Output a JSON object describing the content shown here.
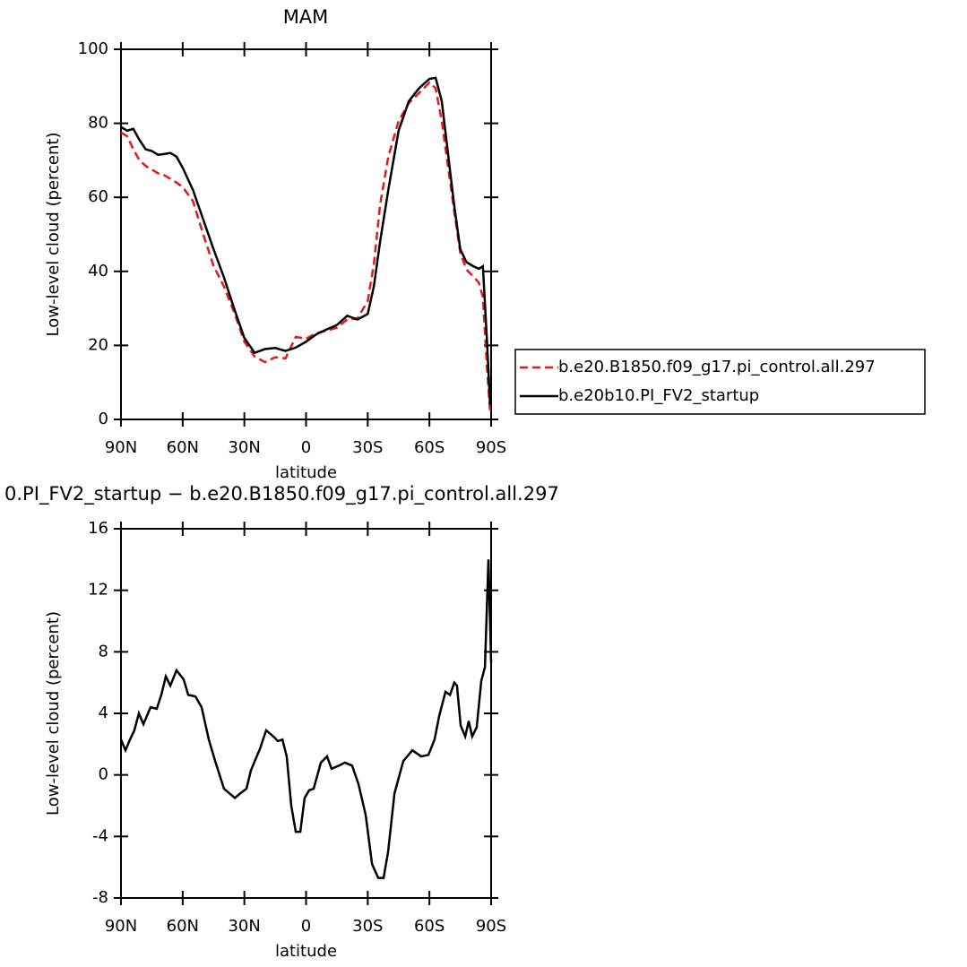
{
  "chart_data": [
    {
      "type": "line",
      "title": "MAM",
      "xlabel": "latitude",
      "ylabel": "Low-level cloud (percent)",
      "x": [
        90,
        87,
        84,
        81,
        78,
        75,
        72,
        69,
        66,
        63,
        60,
        55,
        50,
        45,
        40,
        35,
        30,
        25,
        20,
        15,
        10,
        5,
        0,
        -5,
        -10,
        -15,
        -20,
        -25,
        -30,
        -33,
        -36,
        -40,
        -45,
        -50,
        -55,
        -60,
        -63,
        -66,
        -69,
        -72,
        -75,
        -78,
        -81,
        -84,
        -86,
        -88,
        -89.5
      ],
      "series": [
        {
          "name": "b.e20.B1850.f09_g17.pi_control.all.297",
          "color": "#e31a1c",
          "dash": true,
          "values": [
            77.5,
            76.5,
            73,
            70,
            68.5,
            67.5,
            66.5,
            66,
            65,
            64,
            62.8,
            59,
            50,
            41.5,
            36,
            29,
            21,
            17,
            15.5,
            16.8,
            16.5,
            22.3,
            21.8,
            23.3,
            24,
            24.8,
            27,
            27.3,
            32,
            42,
            58,
            71,
            80.6,
            85.5,
            88.2,
            91,
            89.5,
            80.6,
            68.5,
            56.5,
            45,
            40.5,
            38.8,
            37,
            33,
            14,
            2
          ]
        },
        {
          "name": "b.e20b10.PI_FV2_startup",
          "color": "#000000",
          "dash": false,
          "values": [
            79,
            78,
            78.5,
            75.5,
            73,
            72.5,
            71.5,
            71.7,
            72,
            71,
            68,
            62,
            54,
            46,
            38.5,
            30,
            22,
            18,
            19,
            19.3,
            18.5,
            19.4,
            21,
            23,
            24.3,
            25.5,
            28,
            27,
            28.5,
            36,
            48,
            62,
            78,
            86,
            89.5,
            92,
            92.3,
            86,
            72,
            58,
            46,
            42.5,
            41.5,
            40.7,
            41.4,
            21,
            4
          ]
        }
      ],
      "xlim": [
        90,
        -90
      ],
      "xticks": [
        {
          "value": 90,
          "label": "90N"
        },
        {
          "value": 60,
          "label": "60N"
        },
        {
          "value": 30,
          "label": "30N"
        },
        0,
        {
          "value": -30,
          "label": "30S"
        },
        {
          "value": -60,
          "label": "60S"
        },
        {
          "value": -90,
          "label": "90S"
        }
      ],
      "ylim": [
        0,
        100
      ],
      "yticks": [
        0,
        20,
        40,
        60,
        80,
        100
      ],
      "legend": "outside-right"
    },
    {
      "type": "line",
      "title": "0.PI_FV2_startup − b.e20.B1850.f09_g17.pi_control.all.297",
      "xlabel": "latitude",
      "ylabel": "Low-level cloud (percent)",
      "x": [
        90,
        87.8,
        85.6,
        83.5,
        81.3,
        79.1,
        75.6,
        72.6,
        70.4,
        68.2,
        66,
        63,
        59.5,
        57.3,
        53.8,
        50.8,
        47.3,
        44.2,
        39.9,
        34.6,
        32,
        29,
        26.8,
        22.4,
        19.4,
        15.9,
        13.7,
        11.5,
        9.4,
        7.2,
        5,
        2.8,
        0.7,
        -1.5,
        -3.7,
        -7.2,
        -10.2,
        -12.4,
        -15.9,
        -18.9,
        -22.4,
        -25.5,
        -29,
        -32.1,
        -35.1,
        -37.7,
        -39.9,
        -43,
        -47.3,
        -51.7,
        -56,
        -59.5,
        -62.5,
        -64.7,
        -67.8,
        -70,
        -72.1,
        -73.4,
        -75.2,
        -77.4,
        -79.1,
        -80.8,
        -83,
        -85.2,
        -87,
        -88.7,
        -90
      ],
      "values": [
        2.3,
        1.6,
        2.3,
        2.9,
        4,
        3.3,
        4.4,
        4.3,
        5.2,
        6.4,
        5.8,
        6.8,
        6.2,
        5.2,
        5.1,
        4.4,
        2.3,
        0.9,
        -0.9,
        -1.5,
        -1.2,
        -0.9,
        0.3,
        1.7,
        2.9,
        2.5,
        2.2,
        2.3,
        1.2,
        -2,
        -3.7,
        -3.7,
        -1.5,
        -1,
        -0.9,
        0.8,
        1.2,
        0.4,
        0.6,
        0.8,
        0.6,
        -0.6,
        -2.6,
        -5.8,
        -6.7,
        -6.7,
        -5,
        -1.2,
        0.9,
        1.6,
        1.2,
        1.3,
        2.3,
        3.8,
        5.4,
        5.2,
        6,
        5.8,
        3.2,
        2.5,
        3.5,
        2.5,
        3.1,
        6.1,
        7,
        14,
        7.3
      ],
      "color": "#000000",
      "xlim": [
        90,
        -90
      ],
      "xticks": [
        {
          "value": 90,
          "label": "90N"
        },
        {
          "value": 60,
          "label": "60N"
        },
        {
          "value": 30,
          "label": "30N"
        },
        0,
        {
          "value": -30,
          "label": "30S"
        },
        {
          "value": -60,
          "label": "60S"
        },
        {
          "value": -90,
          "label": "90S"
        }
      ],
      "ylim": [
        -8,
        16
      ],
      "yticks": [
        -8,
        -4,
        0,
        4,
        8,
        12,
        16
      ]
    }
  ]
}
